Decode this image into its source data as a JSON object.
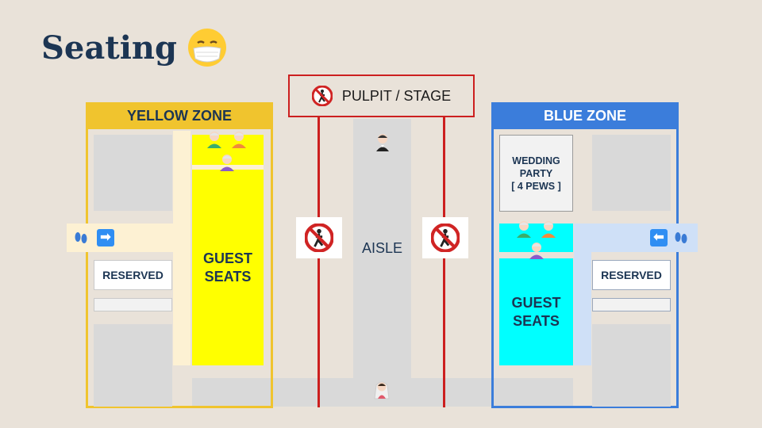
{
  "slide": {
    "title": "Seating"
  },
  "zones": {
    "yellow": {
      "label": "YELLOW ZONE",
      "color": "#f0c42e"
    },
    "blue": {
      "label": "BLUE ZONE",
      "color": "#3b7ddb"
    }
  },
  "stage": {
    "label": "PULPIT / STAGE"
  },
  "aisle": {
    "label": "AISLE"
  },
  "guest_seats": {
    "line1": "GUEST",
    "line2": "SEATS"
  },
  "reserved": {
    "label": "RESERVED"
  },
  "wedding_party": {
    "line1": "WEDDING",
    "line2": "PARTY",
    "line3": "[ 4 PEWS ]"
  },
  "arrows": {
    "right": "➡",
    "left": "⬅"
  },
  "colors": {
    "background": "#e9e2d9",
    "yellow_seats": "#ffff00",
    "cyan_seats": "#00ffff",
    "stage_red": "#cc1f1f",
    "title_navy": "#1c3553"
  },
  "icons": [
    "face-with-medical-mask-icon",
    "no-pedestrians-icon",
    "footprints-icon",
    "elderly-person-icon",
    "groom-icon",
    "bride-icon"
  ]
}
